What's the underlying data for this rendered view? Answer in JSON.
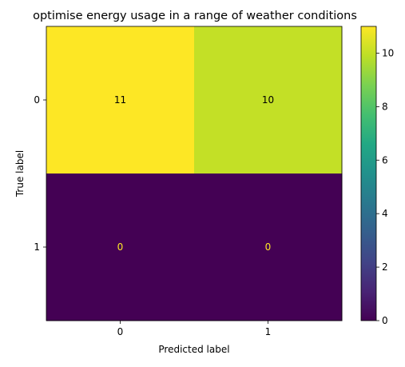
{
  "chart_data": {
    "type": "heatmap",
    "title": "optimise energy usage in a range of weather conditions",
    "xlabel": "Predicted label",
    "ylabel": "True label",
    "x_categories": [
      "0",
      "1"
    ],
    "y_categories": [
      "0",
      "1"
    ],
    "values": [
      [
        11,
        10
      ],
      [
        0,
        0
      ]
    ],
    "colormap": "viridis",
    "vmin": 0,
    "vmax": 11,
    "colorbar_ticks": [
      0,
      2,
      4,
      6,
      8,
      10
    ],
    "colorbar_tick_labels": [
      "0",
      "2",
      "4",
      "6",
      "8",
      "10"
    ],
    "text_colors": {
      "light_cell": "#000000",
      "dark_cell": "#fde725"
    },
    "grid": false
  }
}
